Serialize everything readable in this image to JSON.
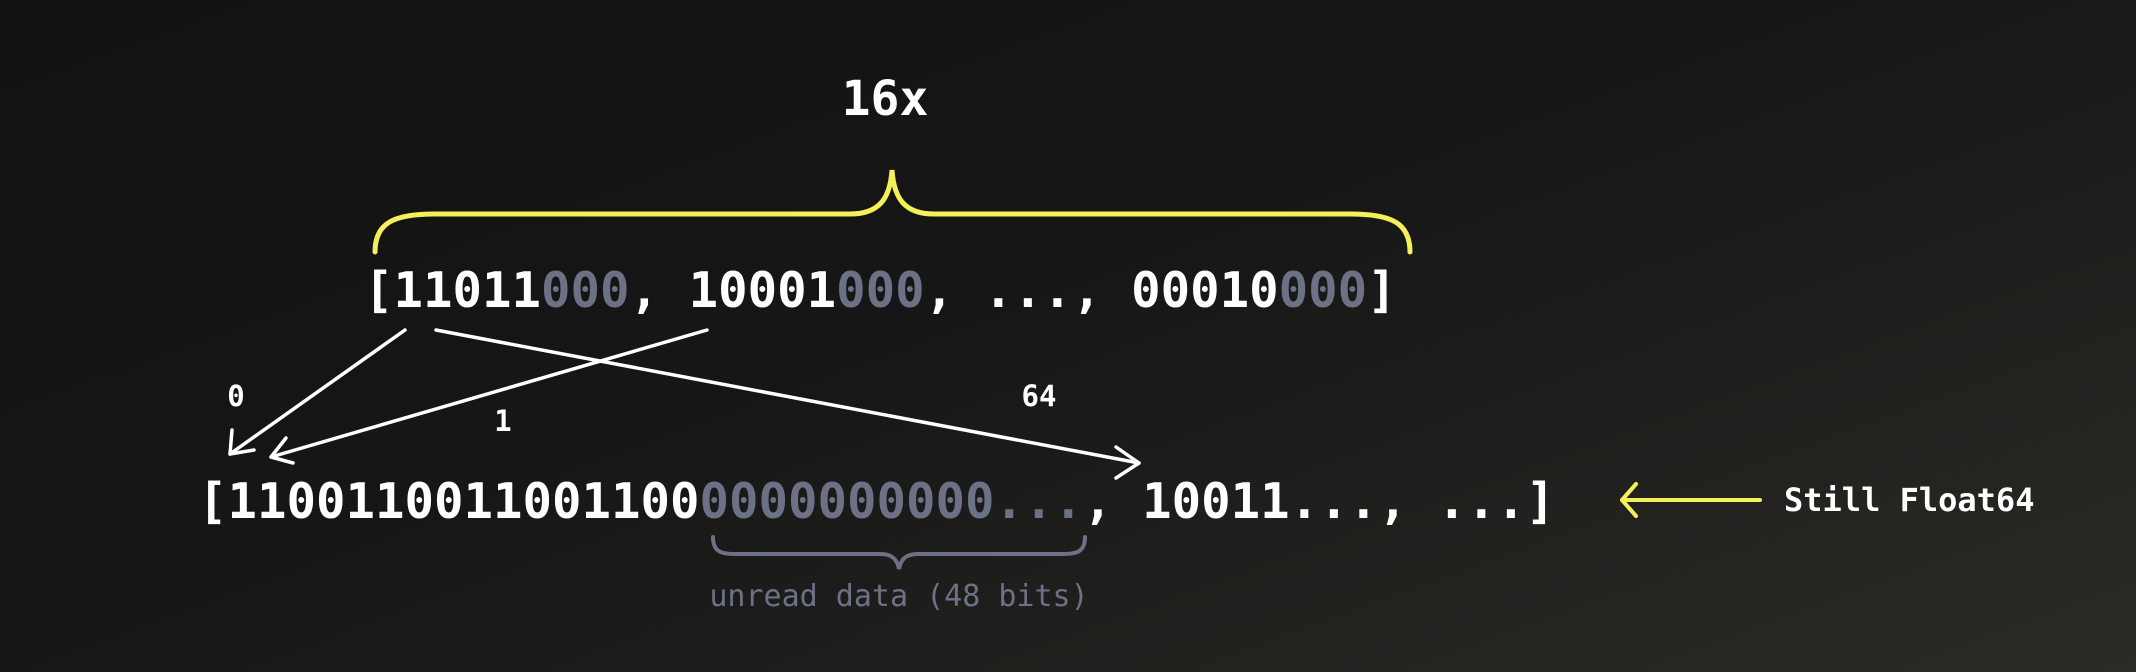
{
  "multiplier_label": "16x",
  "top_array": {
    "open": "[",
    "items": [
      {
        "read": "11011",
        "unread": "000"
      },
      {
        "read": "10001",
        "unread": "000"
      },
      {
        "read": "...",
        "unread": ""
      },
      {
        "read": "00010",
        "unread": "000"
      }
    ],
    "separator": ", ",
    "close": "]"
  },
  "bottom_array": {
    "open": "[",
    "read_bits": "1100110011001100",
    "unread_bits": "0000000000",
    "unread_ellipsis": "...",
    "rest": ", 10011..., ...",
    "close": "]"
  },
  "index_labels": [
    "0",
    "1",
    "64"
  ],
  "unread_note": "unread data (48 bits)",
  "type_note": "Still Float64",
  "colors": {
    "highlight": "#f4f05a",
    "muted": "#6c7186",
    "text": "#ffffff",
    "background": "#141414"
  }
}
